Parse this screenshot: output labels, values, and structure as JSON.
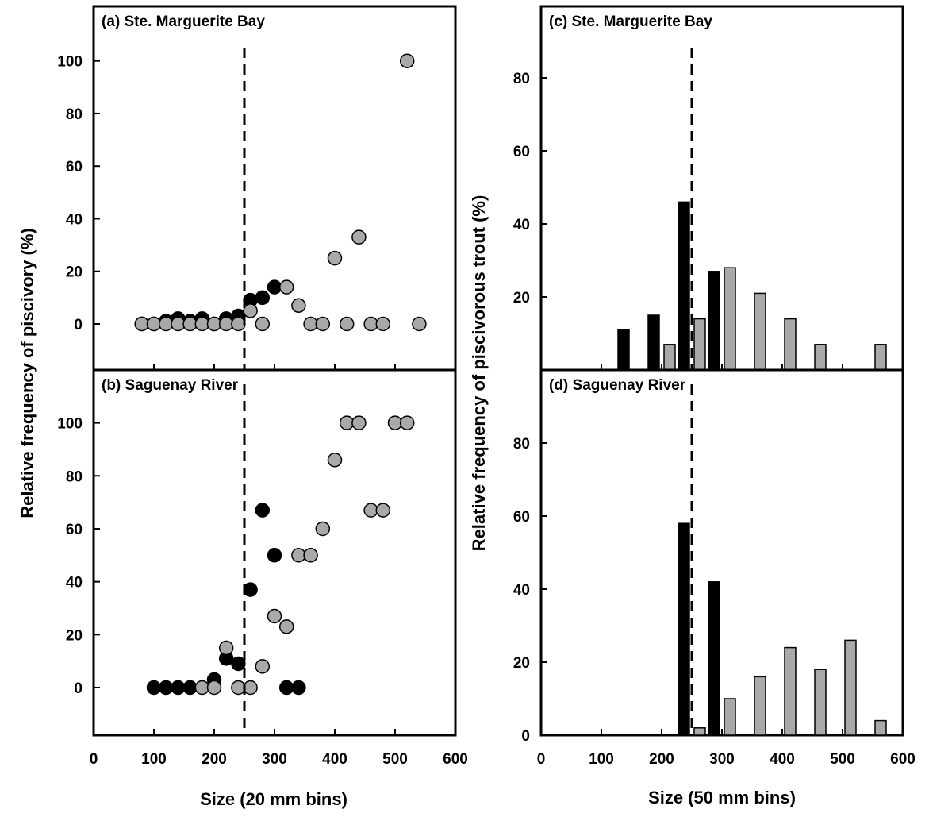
{
  "colors": {
    "black_series": "#000000",
    "gray_series": "#a9a9a9",
    "outline": "#000000",
    "background": "#ffffff"
  },
  "left": {
    "ylabel": "Relative frequency of piscivory (%)",
    "xlabel": "Size (20 mm bins)",
    "xticks": [
      "0",
      "100",
      "200",
      "300",
      "400",
      "500",
      "600"
    ],
    "yticks": [
      "0",
      "20",
      "40",
      "60",
      "80",
      "100"
    ]
  },
  "right": {
    "ylabel": "Relative frequency of piscivorous trout (%)",
    "xlabel": "Size (50 mm bins)",
    "xticks": [
      "0",
      "100",
      "200",
      "300",
      "400",
      "500",
      "600"
    ],
    "yticks": [
      "0",
      "20",
      "40",
      "60",
      "80"
    ]
  },
  "chart_data": [
    {
      "panel": "a",
      "type": "scatter",
      "title": "(a) Ste. Marguerite Bay",
      "xlim": [
        0,
        600
      ],
      "ylim": [
        -18,
        120
      ],
      "yticks": [
        0,
        20,
        40,
        60,
        80,
        100
      ],
      "reference_line_x": 250,
      "series": [
        {
          "color": "black",
          "x": [
            80,
            100,
            120,
            140,
            160,
            180,
            200,
            220,
            240,
            260,
            280,
            300
          ],
          "y": [
            0,
            0,
            1,
            2,
            1,
            2,
            0,
            2,
            3,
            9,
            10,
            14
          ]
        },
        {
          "color": "gray",
          "x": [
            80,
            100,
            120,
            140,
            160,
            180,
            200,
            220,
            240,
            260,
            280,
            320,
            340,
            360,
            380,
            400,
            420,
            440,
            460,
            480,
            520,
            540
          ],
          "y": [
            0,
            0,
            0,
            0,
            0,
            0,
            0,
            0,
            0,
            5,
            0,
            14,
            7,
            0,
            0,
            25,
            0,
            33,
            0,
            0,
            100,
            0
          ]
        }
      ]
    },
    {
      "panel": "b",
      "type": "scatter",
      "title": "(b) Saguenay River",
      "xlim": [
        0,
        600
      ],
      "ylim": [
        -18,
        120
      ],
      "yticks": [
        0,
        20,
        40,
        60,
        80,
        100
      ],
      "reference_line_x": 250,
      "series": [
        {
          "color": "black",
          "x": [
            100,
            120,
            140,
            160,
            200,
            220,
            240,
            260,
            280,
            300,
            320,
            340
          ],
          "y": [
            0,
            0,
            0,
            0,
            3,
            11,
            9,
            37,
            67,
            50,
            0,
            0
          ]
        },
        {
          "color": "gray",
          "x": [
            180,
            200,
            220,
            240,
            260,
            280,
            300,
            320,
            340,
            360,
            380,
            400,
            420,
            440,
            460,
            480,
            500,
            520
          ],
          "y": [
            0,
            0,
            15,
            0,
            0,
            8,
            27,
            23,
            50,
            50,
            60,
            86,
            100,
            100,
            67,
            67,
            100,
            100
          ]
        }
      ]
    },
    {
      "panel": "c",
      "type": "bar",
      "title": "(c) Ste. Marguerite Bay",
      "xlim": [
        0,
        600
      ],
      "ylim": [
        0,
        100
      ],
      "yticks": [
        20,
        40,
        60,
        80
      ],
      "reference_line_x": 250,
      "categories": [
        150,
        200,
        250,
        300,
        350,
        400,
        450,
        500,
        550
      ],
      "series": [
        {
          "color": "black",
          "values": [
            11,
            15,
            46,
            27,
            0,
            0,
            0,
            0,
            0
          ]
        },
        {
          "color": "gray",
          "values": [
            0,
            7,
            14,
            28,
            21,
            14,
            7,
            0,
            7
          ]
        }
      ]
    },
    {
      "panel": "d",
      "type": "bar",
      "title": "(d) Saguenay River",
      "xlim": [
        0,
        600
      ],
      "ylim": [
        0,
        100
      ],
      "yticks": [
        0,
        20,
        40,
        60,
        80
      ],
      "reference_line_x": 250,
      "categories": [
        150,
        200,
        250,
        300,
        350,
        400,
        450,
        500,
        550
      ],
      "series": [
        {
          "color": "black",
          "values": [
            0,
            0,
            58,
            42,
            0,
            0,
            0,
            0,
            0
          ]
        },
        {
          "color": "gray",
          "values": [
            0,
            0,
            2,
            10,
            16,
            24,
            18,
            26,
            4
          ]
        }
      ]
    }
  ]
}
